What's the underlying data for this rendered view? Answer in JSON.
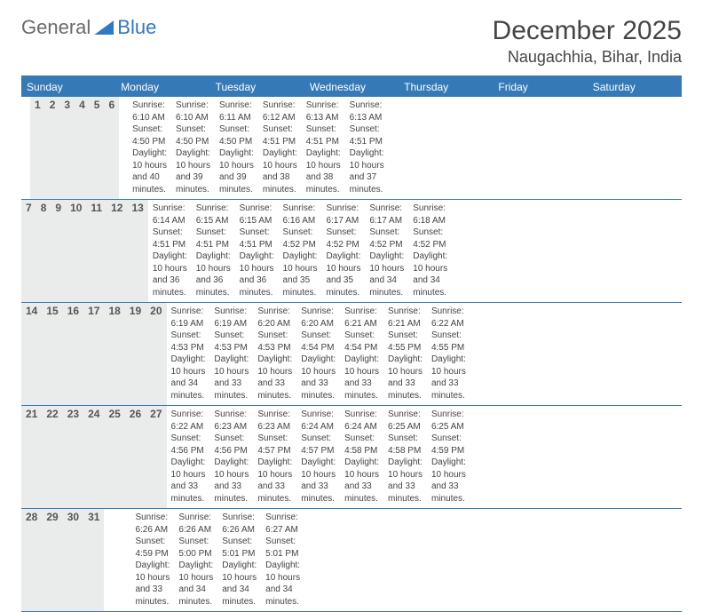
{
  "brand": {
    "general": "General",
    "blue": "Blue"
  },
  "title": "December 2025",
  "location": "Naugachhia, Bihar, India",
  "colors": {
    "header_bg": "#357ab7",
    "header_text": "#ffffff",
    "numrow_bg": "#e9eceb",
    "border": "#357ab7",
    "body_text": "#444444",
    "title_text": "#454545"
  },
  "day_names": [
    "Sunday",
    "Monday",
    "Tuesday",
    "Wednesday",
    "Thursday",
    "Friday",
    "Saturday"
  ],
  "weeks": [
    [
      {
        "n": "",
        "sr": "",
        "ss": "",
        "dl": "",
        "dl2": ""
      },
      {
        "n": "1",
        "sr": "Sunrise: 6:10 AM",
        "ss": "Sunset: 4:50 PM",
        "dl": "Daylight: 10 hours",
        "dl2": "and 40 minutes."
      },
      {
        "n": "2",
        "sr": "Sunrise: 6:10 AM",
        "ss": "Sunset: 4:50 PM",
        "dl": "Daylight: 10 hours",
        "dl2": "and 39 minutes."
      },
      {
        "n": "3",
        "sr": "Sunrise: 6:11 AM",
        "ss": "Sunset: 4:50 PM",
        "dl": "Daylight: 10 hours",
        "dl2": "and 39 minutes."
      },
      {
        "n": "4",
        "sr": "Sunrise: 6:12 AM",
        "ss": "Sunset: 4:51 PM",
        "dl": "Daylight: 10 hours",
        "dl2": "and 38 minutes."
      },
      {
        "n": "5",
        "sr": "Sunrise: 6:13 AM",
        "ss": "Sunset: 4:51 PM",
        "dl": "Daylight: 10 hours",
        "dl2": "and 38 minutes."
      },
      {
        "n": "6",
        "sr": "Sunrise: 6:13 AM",
        "ss": "Sunset: 4:51 PM",
        "dl": "Daylight: 10 hours",
        "dl2": "and 37 minutes."
      }
    ],
    [
      {
        "n": "7",
        "sr": "Sunrise: 6:14 AM",
        "ss": "Sunset: 4:51 PM",
        "dl": "Daylight: 10 hours",
        "dl2": "and 36 minutes."
      },
      {
        "n": "8",
        "sr": "Sunrise: 6:15 AM",
        "ss": "Sunset: 4:51 PM",
        "dl": "Daylight: 10 hours",
        "dl2": "and 36 minutes."
      },
      {
        "n": "9",
        "sr": "Sunrise: 6:15 AM",
        "ss": "Sunset: 4:51 PM",
        "dl": "Daylight: 10 hours",
        "dl2": "and 36 minutes."
      },
      {
        "n": "10",
        "sr": "Sunrise: 6:16 AM",
        "ss": "Sunset: 4:52 PM",
        "dl": "Daylight: 10 hours",
        "dl2": "and 35 minutes."
      },
      {
        "n": "11",
        "sr": "Sunrise: 6:17 AM",
        "ss": "Sunset: 4:52 PM",
        "dl": "Daylight: 10 hours",
        "dl2": "and 35 minutes."
      },
      {
        "n": "12",
        "sr": "Sunrise: 6:17 AM",
        "ss": "Sunset: 4:52 PM",
        "dl": "Daylight: 10 hours",
        "dl2": "and 34 minutes."
      },
      {
        "n": "13",
        "sr": "Sunrise: 6:18 AM",
        "ss": "Sunset: 4:52 PM",
        "dl": "Daylight: 10 hours",
        "dl2": "and 34 minutes."
      }
    ],
    [
      {
        "n": "14",
        "sr": "Sunrise: 6:19 AM",
        "ss": "Sunset: 4:53 PM",
        "dl": "Daylight: 10 hours",
        "dl2": "and 34 minutes."
      },
      {
        "n": "15",
        "sr": "Sunrise: 6:19 AM",
        "ss": "Sunset: 4:53 PM",
        "dl": "Daylight: 10 hours",
        "dl2": "and 33 minutes."
      },
      {
        "n": "16",
        "sr": "Sunrise: 6:20 AM",
        "ss": "Sunset: 4:53 PM",
        "dl": "Daylight: 10 hours",
        "dl2": "and 33 minutes."
      },
      {
        "n": "17",
        "sr": "Sunrise: 6:20 AM",
        "ss": "Sunset: 4:54 PM",
        "dl": "Daylight: 10 hours",
        "dl2": "and 33 minutes."
      },
      {
        "n": "18",
        "sr": "Sunrise: 6:21 AM",
        "ss": "Sunset: 4:54 PM",
        "dl": "Daylight: 10 hours",
        "dl2": "and 33 minutes."
      },
      {
        "n": "19",
        "sr": "Sunrise: 6:21 AM",
        "ss": "Sunset: 4:55 PM",
        "dl": "Daylight: 10 hours",
        "dl2": "and 33 minutes."
      },
      {
        "n": "20",
        "sr": "Sunrise: 6:22 AM",
        "ss": "Sunset: 4:55 PM",
        "dl": "Daylight: 10 hours",
        "dl2": "and 33 minutes."
      }
    ],
    [
      {
        "n": "21",
        "sr": "Sunrise: 6:22 AM",
        "ss": "Sunset: 4:56 PM",
        "dl": "Daylight: 10 hours",
        "dl2": "and 33 minutes."
      },
      {
        "n": "22",
        "sr": "Sunrise: 6:23 AM",
        "ss": "Sunset: 4:56 PM",
        "dl": "Daylight: 10 hours",
        "dl2": "and 33 minutes."
      },
      {
        "n": "23",
        "sr": "Sunrise: 6:23 AM",
        "ss": "Sunset: 4:57 PM",
        "dl": "Daylight: 10 hours",
        "dl2": "and 33 minutes."
      },
      {
        "n": "24",
        "sr": "Sunrise: 6:24 AM",
        "ss": "Sunset: 4:57 PM",
        "dl": "Daylight: 10 hours",
        "dl2": "and 33 minutes."
      },
      {
        "n": "25",
        "sr": "Sunrise: 6:24 AM",
        "ss": "Sunset: 4:58 PM",
        "dl": "Daylight: 10 hours",
        "dl2": "and 33 minutes."
      },
      {
        "n": "26",
        "sr": "Sunrise: 6:25 AM",
        "ss": "Sunset: 4:58 PM",
        "dl": "Daylight: 10 hours",
        "dl2": "and 33 minutes."
      },
      {
        "n": "27",
        "sr": "Sunrise: 6:25 AM",
        "ss": "Sunset: 4:59 PM",
        "dl": "Daylight: 10 hours",
        "dl2": "and 33 minutes."
      }
    ],
    [
      {
        "n": "28",
        "sr": "Sunrise: 6:26 AM",
        "ss": "Sunset: 4:59 PM",
        "dl": "Daylight: 10 hours",
        "dl2": "and 33 minutes."
      },
      {
        "n": "29",
        "sr": "Sunrise: 6:26 AM",
        "ss": "Sunset: 5:00 PM",
        "dl": "Daylight: 10 hours",
        "dl2": "and 34 minutes."
      },
      {
        "n": "30",
        "sr": "Sunrise: 6:26 AM",
        "ss": "Sunset: 5:01 PM",
        "dl": "Daylight: 10 hours",
        "dl2": "and 34 minutes."
      },
      {
        "n": "31",
        "sr": "Sunrise: 6:27 AM",
        "ss": "Sunset: 5:01 PM",
        "dl": "Daylight: 10 hours",
        "dl2": "and 34 minutes."
      },
      {
        "n": "",
        "sr": "",
        "ss": "",
        "dl": "",
        "dl2": ""
      },
      {
        "n": "",
        "sr": "",
        "ss": "",
        "dl": "",
        "dl2": ""
      },
      {
        "n": "",
        "sr": "",
        "ss": "",
        "dl": "",
        "dl2": ""
      }
    ]
  ]
}
